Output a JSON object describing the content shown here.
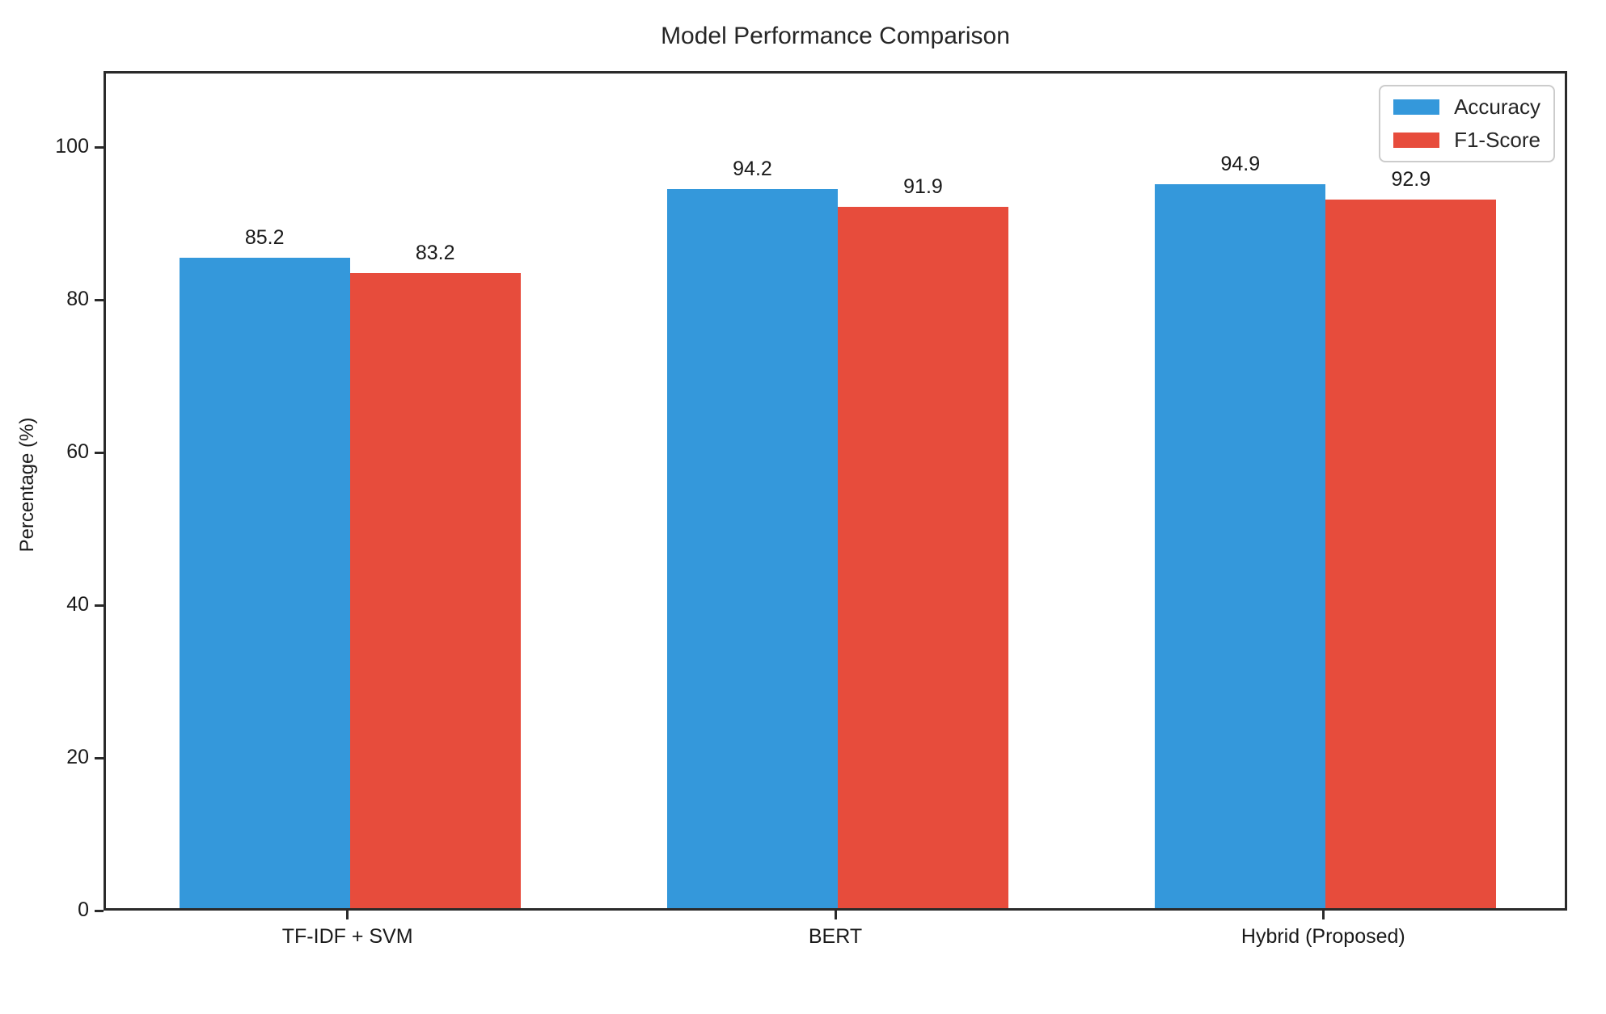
{
  "chart_data": {
    "type": "bar",
    "title": "Model Performance Comparison",
    "xlabel": "",
    "ylabel": "Percentage (%)",
    "categories": [
      "TF-IDF + SVM",
      "BERT",
      "Hybrid (Proposed)"
    ],
    "series": [
      {
        "name": "Accuracy",
        "color": "#3498db",
        "values": [
          85.2,
          94.2,
          94.9
        ]
      },
      {
        "name": "F1-Score",
        "color": "#e74c3c",
        "values": [
          83.2,
          91.9,
          92.9
        ]
      }
    ],
    "bar_value_labels": [
      "85.2",
      "83.2",
      "94.2",
      "91.9",
      "94.9",
      "92.9"
    ],
    "ylim": [
      0,
      110
    ],
    "yticks": [
      0,
      20,
      40,
      60,
      80,
      100
    ],
    "grid": false,
    "legend_position": "upper right",
    "colors": {
      "accuracy": "#3498db",
      "f1_score": "#e74c3c",
      "spine": "#2a2a2a",
      "text": "#1a1a1a"
    }
  }
}
